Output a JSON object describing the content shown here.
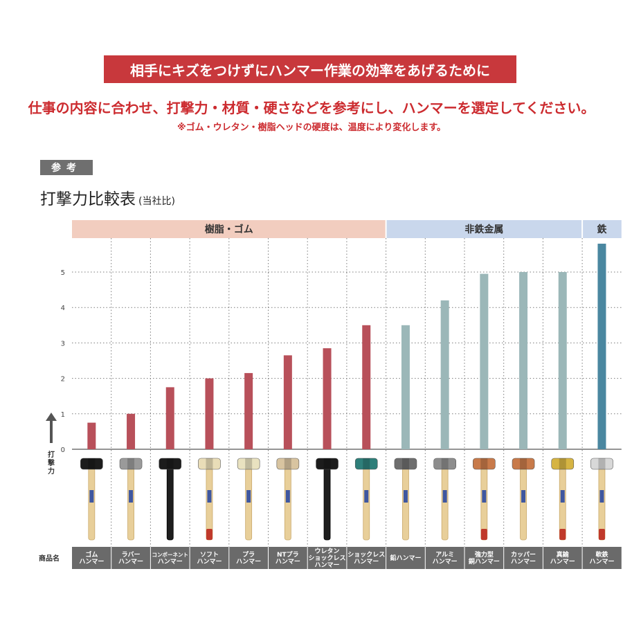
{
  "header": {
    "banner": "相手にキズをつけずにハンマー作業の効率をあげるために",
    "subtitle": "仕事の内容に合わせ、打撃力・材質・硬さなどを参考にし、ハンマーを選定してください。",
    "note": "※ゴム・ウレタン・樹脂ヘッドの硬度は、温度により変化します。",
    "ref_label": "参考",
    "table_title": "打撃力比較表",
    "table_title_sub": "(当社比)"
  },
  "colors": {
    "banner": "#c8383c",
    "red_text": "#cc2b2f",
    "resin_bar": "#b8505a",
    "resin_header": "#f2cdbf",
    "nonferrous_bar": "#9bb7b8",
    "nonferrous_header": "#c9d7ec",
    "iron_bar": "#4a87a0",
    "iron_header": "#c9d7ec",
    "label_strip": "#6a6a6a"
  },
  "chart_data": {
    "type": "bar",
    "title": "打撃力比較表",
    "ylabel": "打撃力",
    "xlabel": "商品名",
    "ylim": [
      0,
      6
    ],
    "yticks": [
      "0",
      "1",
      "2",
      "3",
      "4",
      "5"
    ],
    "groups": [
      {
        "name": "樹脂・ゴム",
        "count": 8
      },
      {
        "name": "非鉄金属",
        "count": 5
      },
      {
        "name": "鉄",
        "count": 1
      }
    ],
    "categories": [
      [
        "ゴム",
        "ハンマー"
      ],
      [
        "ラバー",
        "ハンマー"
      ],
      [
        "コンポーネント",
        "ハンマー"
      ],
      [
        "ソフト",
        "ハンマー"
      ],
      [
        "プラ",
        "ハンマー"
      ],
      [
        "NTプラ",
        "ハンマー"
      ],
      [
        "ウレタン",
        "ショックレス",
        "ハンマー"
      ],
      [
        "ショックレス",
        "ハンマー"
      ],
      [
        "鉛ハンマー"
      ],
      [
        "アルミ",
        "ハンマー"
      ],
      [
        "強力型",
        "銅ハンマー"
      ],
      [
        "カッパー",
        "ハンマー"
      ],
      [
        "真鍮",
        "ハンマー"
      ],
      [
        "軟鉄",
        "ハンマー"
      ]
    ],
    "values": [
      0.75,
      1.0,
      1.75,
      2.0,
      2.15,
      2.65,
      2.85,
      3.5,
      3.5,
      4.2,
      4.95,
      5.0,
      5.0,
      5.8
    ],
    "group_index": [
      0,
      0,
      0,
      0,
      0,
      0,
      0,
      0,
      1,
      1,
      1,
      1,
      1,
      2
    ],
    "hammers": [
      {
        "head": "#1c1c1c",
        "handle": "wood",
        "tip": null
      },
      {
        "head": "#9a9a9a",
        "handle": "wood",
        "tip": null
      },
      {
        "head": "#1c1c1c",
        "handle": "black",
        "tip": null
      },
      {
        "head": "#e9ddb8",
        "handle": "wood",
        "tip": "#c0392b"
      },
      {
        "head": "#e9e2c0",
        "handle": "wood",
        "tip": null
      },
      {
        "head": "#d8c4a0",
        "handle": "wood",
        "tip": null
      },
      {
        "head": "#1c1c1c",
        "handle": "black",
        "tip": null
      },
      {
        "head": "#2e7f7a",
        "handle": "wood",
        "tip": null
      },
      {
        "head": "#6e6e6e",
        "handle": "wood",
        "tip": null
      },
      {
        "head": "#8d8d8d",
        "handle": "wood",
        "tip": null
      },
      {
        "head": "#c87a4a",
        "handle": "wood",
        "tip": "#c0392b"
      },
      {
        "head": "#c87a4a",
        "handle": "wood",
        "tip": null
      },
      {
        "head": "#d6b443",
        "handle": "wood",
        "tip": "#c0392b"
      },
      {
        "head": "#d8d8d8",
        "handle": "wood",
        "tip": "#c0392b"
      }
    ]
  }
}
